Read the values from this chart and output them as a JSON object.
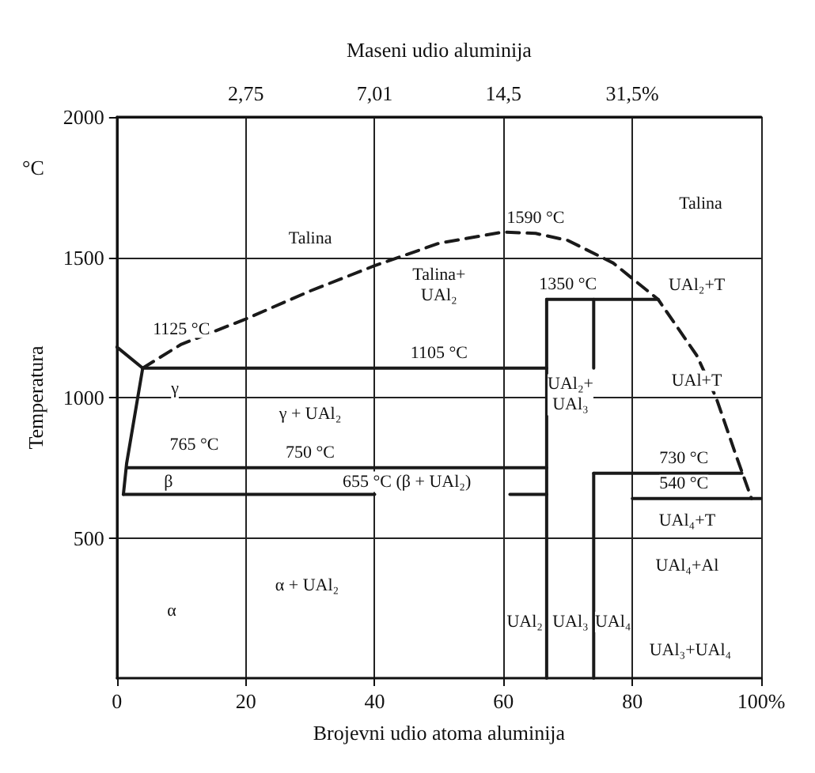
{
  "chart_data": {
    "type": "line",
    "xlabel": "Brojevni udio atoma aluminija",
    "x2label": "Maseni udio aluminija",
    "ylabel": "Temperatura",
    "xlim": [
      0,
      100
    ],
    "xticks": [
      0,
      20,
      40,
      60,
      80,
      {
        "value": 100,
        "label": "100%"
      }
    ],
    "ylim": [
      0,
      2000
    ],
    "yticks": [
      500,
      1000,
      1500,
      2000
    ],
    "grid": true,
    "marker": "none",
    "line_style": "solid",
    "series": [
      {
        "color": "#1a1a1a",
        "line_style": "dashed",
        "x": [
          4,
          10,
          20,
          30,
          40,
          50,
          60,
          65,
          70,
          77,
          84,
          90,
          93,
          96,
          98.5
        ],
        "values": [
          1105,
          1190,
          1280,
          1380,
          1470,
          1550,
          1590,
          1585,
          1560,
          1480,
          1350,
          1150,
          1000,
          800,
          640
        ]
      },
      {
        "color": "#1a1a1a",
        "x": [
          0,
          4
        ],
        "values": [
          1180,
          1105
        ]
      },
      {
        "color": "#1a1a1a",
        "x": [
          4,
          1.5,
          1
        ],
        "values": [
          1105,
          765,
          655
        ]
      },
      {
        "color": "#1a1a1a",
        "x": [
          4,
          66.7
        ],
        "values": [
          1105,
          1105
        ]
      },
      {
        "color": "#1a1a1a",
        "x": [
          1.5,
          66.7
        ],
        "values": [
          750,
          750
        ]
      },
      {
        "color": "#1a1a1a",
        "x": [
          1,
          40
        ],
        "values": [
          655,
          655
        ]
      },
      {
        "color": "#1a1a1a",
        "x": [
          61,
          66.7
        ],
        "values": [
          655,
          655
        ]
      },
      {
        "color": "#1a1a1a",
        "x": [
          66.7,
          66.7
        ],
        "values": [
          1350,
          0
        ]
      },
      {
        "color": "#1a1a1a",
        "x": [
          66.7,
          84
        ],
        "values": [
          1350,
          1350
        ]
      },
      {
        "color": "#1a1a1a",
        "x": [
          74,
          74
        ],
        "values": [
          1350,
          1105
        ]
      },
      {
        "color": "#1a1a1a",
        "x": [
          74,
          74
        ],
        "values": [
          730,
          0
        ]
      },
      {
        "color": "#1a1a1a",
        "x": [
          74,
          97
        ],
        "values": [
          730,
          730
        ]
      },
      {
        "color": "#1a1a1a",
        "x": [
          80,
          100
        ],
        "values": [
          640,
          640
        ]
      }
    ],
    "annotations": [
      "°C",
      "2,75",
      "7,01",
      "14,5",
      "31,5%",
      "Talina",
      "Talina",
      "Talina+\nUAl₂",
      "UAl₂+T",
      "UAl₂+\nUAl₃",
      "UAl+T",
      "γ",
      "γ + UAl₂",
      "765 °C",
      "β",
      "655 °C (β + UAl₂)",
      "UAl₄+T",
      "UAl₄+Al",
      "α + UAl₂",
      "α",
      "UAl₂",
      "UAl₃",
      "UAl₄",
      "UAl₃+UAl₄",
      {
        "text": "1590 °C",
        "x": 65,
        "y": 1585
      },
      {
        "text": "1350 °C",
        "x": 70,
        "y": 1350
      },
      {
        "text": "1125 °C",
        "x": 10,
        "y": 1190
      },
      {
        "text": "1105 °C",
        "x": 50,
        "y": 1105
      },
      {
        "text": "750 °C",
        "x": 30,
        "y": 750
      },
      {
        "text": "730 °C",
        "x": 88,
        "y": 730
      },
      {
        "text": "540 °C",
        "x": 88,
        "y": 640
      }
    ]
  }
}
